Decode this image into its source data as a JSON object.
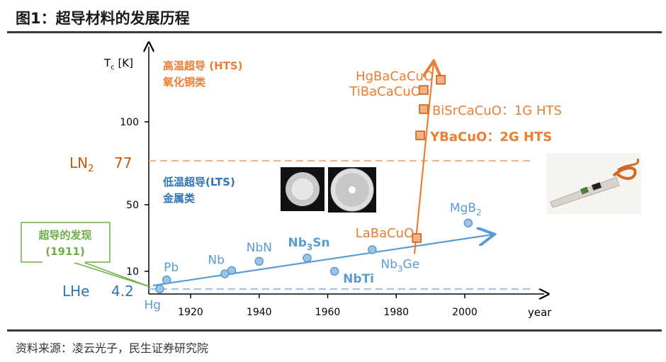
{
  "title": "图1：超导材料的发展历程",
  "source": "资料来源：凌云光子，民生证券研究院",
  "colors": {
    "lts": "#5b9bd5",
    "hts": "#ed7d31",
    "discovery": "#70ad47",
    "axis": "#000000"
  },
  "chart_data": {
    "type": "scatter",
    "xlabel": "year",
    "ylabel": "Tc [K]",
    "x_ticks": [
      "1920",
      "1940",
      "1960",
      "1980",
      "2000"
    ],
    "y_ticks": [
      "10",
      "50",
      "100"
    ],
    "ref_lines": {
      "ln2": {
        "label": "LN",
        "sub": "2",
        "value_label": "77",
        "value": 77
      },
      "lhe": {
        "label": "LHe",
        "value_label": "4.2",
        "value": 4.2
      }
    },
    "hts_label": {
      "line1": "高温超导 (HTS)",
      "line2": "氧化铜类"
    },
    "lts_label": {
      "line1": "低温超导(LTS)",
      "line2": "金属类"
    },
    "discovery_label": {
      "line1": "超导的发现",
      "line2": "(1911)"
    },
    "lts_points": [
      {
        "name": "Hg",
        "year": 1911,
        "tc": 4.2
      },
      {
        "name": "Pb",
        "year": 1913,
        "tc": 7.2
      },
      {
        "name": "Nb",
        "year": 1930,
        "tc": 9.2
      },
      {
        "name": "NbN",
        "year": 1940,
        "tc": 16
      },
      {
        "name": "Nb",
        "sub": "3",
        "name2": "Sn",
        "year": 1954,
        "tc": 18
      },
      {
        "name": "NbTi",
        "year": 1962,
        "tc": 10
      },
      {
        "name": "Nb",
        "sub": "3",
        "name2": "Ge",
        "year": 1973,
        "tc": 23
      },
      {
        "name": "MgB",
        "sub": "2",
        "year": 2001,
        "tc": 39
      },
      {
        "name": "",
        "year": 1932,
        "tc": 10.5
      }
    ],
    "hts_points": [
      {
        "name": "LaBaCuO",
        "year": 1986,
        "tc": 30
      },
      {
        "name": "YBaCuO：2G HTS",
        "year": 1987,
        "tc": 92
      },
      {
        "name": "BiSrCaCuO：1G HTS",
        "year": 1988,
        "tc": 110
      },
      {
        "name": "TiBaCaCuO",
        "year": 1988,
        "tc": 125
      },
      {
        "name": "HgBaCaCuO",
        "year": 1993,
        "tc": 133
      }
    ]
  }
}
